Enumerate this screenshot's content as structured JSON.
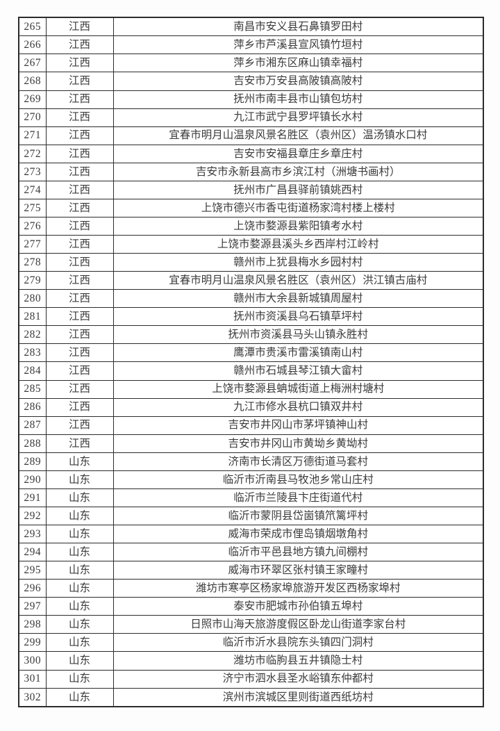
{
  "table": {
    "rows": [
      {
        "no": "265",
        "province": "江西",
        "village": "南昌市安义县石鼻镇罗田村"
      },
      {
        "no": "266",
        "province": "江西",
        "village": "萍乡市芦溪县宣风镇竹垣村"
      },
      {
        "no": "267",
        "province": "江西",
        "village": "萍乡市湘东区麻山镇幸福村"
      },
      {
        "no": "268",
        "province": "江西",
        "village": "吉安市万安县高陂镇高陂村"
      },
      {
        "no": "269",
        "province": "江西",
        "village": "抚州市南丰县市山镇包坊村"
      },
      {
        "no": "270",
        "province": "江西",
        "village": "九江市武宁县罗坪镇长水村"
      },
      {
        "no": "271",
        "province": "江西",
        "village": "宜春市明月山温泉风景名胜区（袁州区）温汤镇水口村"
      },
      {
        "no": "272",
        "province": "江西",
        "village": "吉安市安福县章庄乡章庄村"
      },
      {
        "no": "273",
        "province": "江西",
        "village": "吉安市永新县高市乡滨江村（洲塘书画村）"
      },
      {
        "no": "274",
        "province": "江西",
        "village": "抚州市广昌县驿前镇姚西村"
      },
      {
        "no": "275",
        "province": "江西",
        "village": "上饶市德兴市香屯街道杨家湾村楼上楼村"
      },
      {
        "no": "276",
        "province": "江西",
        "village": "上饶市婺源县紫阳镇考水村"
      },
      {
        "no": "277",
        "province": "江西",
        "village": "上饶市婺源县溪头乡西岸村江岭村"
      },
      {
        "no": "278",
        "province": "江西",
        "village": "赣州市上犹县梅水乡园村村"
      },
      {
        "no": "279",
        "province": "江西",
        "village": "宜春市明月山温泉风景名胜区（袁州区）洪江镇古庙村"
      },
      {
        "no": "280",
        "province": "江西",
        "village": "赣州市大余县新城镇周屋村"
      },
      {
        "no": "281",
        "province": "江西",
        "village": "抚州市资溪县乌石镇草坪村"
      },
      {
        "no": "282",
        "province": "江西",
        "village": "抚州市资溪县马头山镇永胜村"
      },
      {
        "no": "283",
        "province": "江西",
        "village": "鹰潭市贵溪市雷溪镇南山村"
      },
      {
        "no": "284",
        "province": "江西",
        "village": "赣州市石城县琴江镇大畲村"
      },
      {
        "no": "285",
        "province": "江西",
        "village": "上饶市婺源县蚺城街道上梅洲村塘村"
      },
      {
        "no": "286",
        "province": "江西",
        "village": "九江市修水县杭口镇双井村"
      },
      {
        "no": "287",
        "province": "江西",
        "village": "吉安市井冈山市茅坪镇神山村"
      },
      {
        "no": "288",
        "province": "江西",
        "village": "吉安市井冈山市黄坳乡黄坳村"
      },
      {
        "no": "289",
        "province": "山东",
        "village": "济南市长清区万德街道马套村"
      },
      {
        "no": "290",
        "province": "山东",
        "village": "临沂市沂南县马牧池乡常山庄村"
      },
      {
        "no": "291",
        "province": "山东",
        "village": "临沂市兰陵县卞庄街道代村"
      },
      {
        "no": "292",
        "province": "山东",
        "village": "临沂市蒙阴县岱崮镇笊篱坪村"
      },
      {
        "no": "293",
        "province": "山东",
        "village": "威海市荣成市俚岛镇烟墩角村"
      },
      {
        "no": "294",
        "province": "山东",
        "village": "临沂市平邑县地方镇九间棚村"
      },
      {
        "no": "295",
        "province": "山东",
        "village": "威海市环翠区张村镇王家疃村"
      },
      {
        "no": "296",
        "province": "山东",
        "village": "潍坊市寒亭区杨家埠旅游开发区西杨家埠村"
      },
      {
        "no": "297",
        "province": "山东",
        "village": "泰安市肥城市孙伯镇五埠村"
      },
      {
        "no": "298",
        "province": "山东",
        "village": "日照市山海天旅游度假区卧龙山街道李家台村"
      },
      {
        "no": "299",
        "province": "山东",
        "village": "临沂市沂水县院东头镇四门洞村"
      },
      {
        "no": "300",
        "province": "山东",
        "village": "潍坊市临朐县五井镇隐士村"
      },
      {
        "no": "301",
        "province": "山东",
        "village": "济宁市泗水县圣水峪镇东仲都村"
      },
      {
        "no": "302",
        "province": "山东",
        "village": "滨州市滨城区里则街道西纸坊村"
      }
    ]
  }
}
